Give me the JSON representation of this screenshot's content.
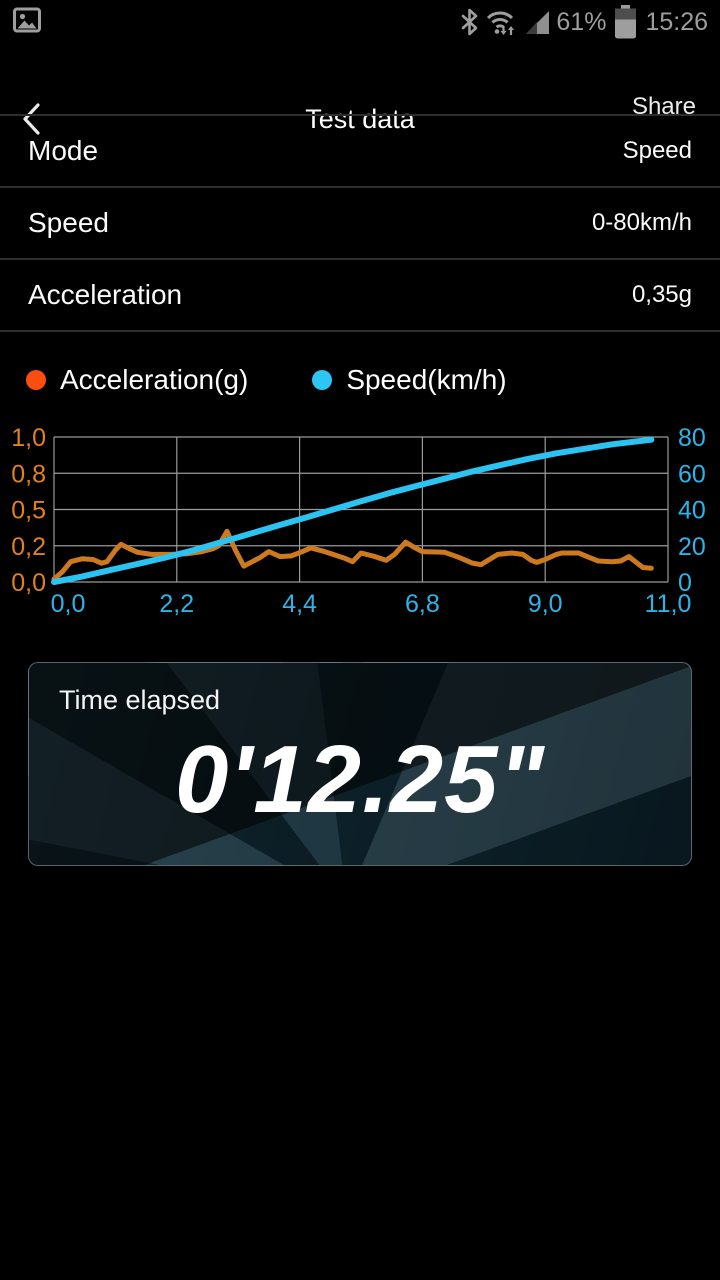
{
  "status_bar": {
    "battery_percent": "61%",
    "time": "15:26",
    "icon_color": "#9e9e9e"
  },
  "nav": {
    "title": "Test data",
    "share_label": "Share"
  },
  "rows": [
    {
      "label": "Mode",
      "value": "Speed"
    },
    {
      "label": "Speed",
      "value": "0-80km/h"
    },
    {
      "label": "Acceleration",
      "value": "0,35g"
    }
  ],
  "legend": {
    "items": [
      {
        "label": "Acceleration(g)",
        "color": "#fb4e11"
      },
      {
        "label": "Speed(km/h)",
        "color": "#2cc5f4"
      }
    ]
  },
  "chart_data": {
    "type": "line",
    "grid": true,
    "grid_color": "#9a9a9a",
    "x_axis": {
      "labels": [
        "0,0",
        "2,2",
        "4,4",
        "6,8",
        "9,0",
        "11,0"
      ],
      "range": [
        0,
        11
      ],
      "color": "#2eb3e8"
    },
    "left_axis": {
      "labels": [
        "1,0",
        "0,8",
        "0,5",
        "0,2",
        "0,0"
      ],
      "range": [
        0,
        1
      ],
      "color": "#e0821e",
      "title": "Acceleration(g)"
    },
    "right_axis": {
      "labels": [
        "80",
        "60",
        "40",
        "20",
        "0"
      ],
      "range": [
        0,
        80
      ],
      "color": "#2eb3e8",
      "title": "Speed(km/h)"
    },
    "series": [
      {
        "name": "Acceleration(g)",
        "axis": "left",
        "color": "#cd7a1f",
        "width": 5,
        "points": [
          [
            0,
            0.02
          ],
          [
            0.15,
            0.07
          ],
          [
            0.3,
            0.14
          ],
          [
            0.5,
            0.16
          ],
          [
            0.7,
            0.155
          ],
          [
            0.85,
            0.13
          ],
          [
            0.95,
            0.14
          ],
          [
            1.1,
            0.22
          ],
          [
            1.2,
            0.26
          ],
          [
            1.35,
            0.23
          ],
          [
            1.5,
            0.205
          ],
          [
            1.75,
            0.19
          ],
          [
            2.1,
            0.19
          ],
          [
            2.4,
            0.195
          ],
          [
            2.65,
            0.21
          ],
          [
            2.85,
            0.23
          ],
          [
            2.95,
            0.25
          ],
          [
            3.1,
            0.35
          ],
          [
            3.25,
            0.22
          ],
          [
            3.4,
            0.11
          ],
          [
            3.55,
            0.14
          ],
          [
            3.7,
            0.17
          ],
          [
            3.85,
            0.21
          ],
          [
            4.05,
            0.175
          ],
          [
            4.25,
            0.18
          ],
          [
            4.45,
            0.21
          ],
          [
            4.6,
            0.235
          ],
          [
            4.8,
            0.215
          ],
          [
            5.0,
            0.19
          ],
          [
            5.2,
            0.165
          ],
          [
            5.35,
            0.14
          ],
          [
            5.5,
            0.2
          ],
          [
            5.75,
            0.175
          ],
          [
            5.95,
            0.15
          ],
          [
            6.1,
            0.19
          ],
          [
            6.3,
            0.275
          ],
          [
            6.45,
            0.24
          ],
          [
            6.6,
            0.21
          ],
          [
            7.0,
            0.205
          ],
          [
            7.25,
            0.17
          ],
          [
            7.5,
            0.13
          ],
          [
            7.65,
            0.12
          ],
          [
            7.8,
            0.155
          ],
          [
            7.95,
            0.19
          ],
          [
            8.2,
            0.2
          ],
          [
            8.4,
            0.19
          ],
          [
            8.55,
            0.15
          ],
          [
            8.65,
            0.135
          ],
          [
            8.8,
            0.155
          ],
          [
            9.0,
            0.19
          ],
          [
            9.1,
            0.2
          ],
          [
            9.4,
            0.2
          ],
          [
            9.55,
            0.175
          ],
          [
            9.75,
            0.145
          ],
          [
            10.0,
            0.14
          ],
          [
            10.15,
            0.145
          ],
          [
            10.3,
            0.175
          ],
          [
            10.45,
            0.13
          ],
          [
            10.55,
            0.1
          ],
          [
            10.7,
            0.095
          ]
        ]
      },
      {
        "name": "Speed(km/h)",
        "axis": "right",
        "color": "#2bc4f2",
        "width": 6,
        "points": [
          [
            0,
            0
          ],
          [
            0.5,
            3
          ],
          [
            1,
            6.5
          ],
          [
            1.5,
            10
          ],
          [
            2,
            13.5
          ],
          [
            2.5,
            17.5
          ],
          [
            3,
            22
          ],
          [
            3.5,
            26.5
          ],
          [
            4,
            31
          ],
          [
            4.5,
            35.5
          ],
          [
            5,
            40
          ],
          [
            5.5,
            44.5
          ],
          [
            6,
            49
          ],
          [
            6.5,
            53
          ],
          [
            7,
            57
          ],
          [
            7.5,
            61
          ],
          [
            8,
            64.5
          ],
          [
            8.5,
            68
          ],
          [
            9,
            71
          ],
          [
            9.5,
            73.5
          ],
          [
            10,
            76
          ],
          [
            10.7,
            78.5
          ]
        ]
      }
    ]
  },
  "time_card": {
    "label": "Time elapsed",
    "value": "0'12.25\""
  }
}
